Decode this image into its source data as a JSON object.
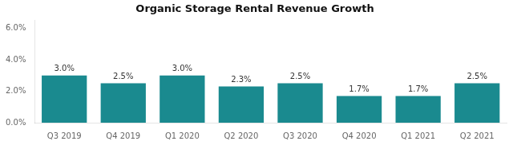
{
  "chart_data": {
    "type": "bar",
    "title": "Organic Storage Rental Revenue Growth",
    "categories": [
      "Q3 2019",
      "Q4 2019",
      "Q1 2020",
      "Q2 2020",
      "Q3 2020",
      "Q4 2020",
      "Q1 2021",
      "Q2 2021"
    ],
    "values": [
      3.0,
      2.5,
      3.0,
      2.3,
      2.5,
      1.7,
      1.7,
      2.5
    ],
    "value_labels": [
      "3.0%",
      "2.5%",
      "3.0%",
      "2.3%",
      "2.5%",
      "1.7%",
      "1.7%",
      "2.5%"
    ],
    "data_labels": true,
    "color": "#1a8a8f",
    "ylim": [
      0.0,
      6.5
    ],
    "yticks": [
      {
        "value": 0.0,
        "label": "0.0%"
      },
      {
        "value": 2.0,
        "label": "2.0%"
      },
      {
        "value": 4.0,
        "label": "4.0%"
      },
      {
        "value": 6.0,
        "label": "6.0%"
      }
    ],
    "grid": false
  }
}
